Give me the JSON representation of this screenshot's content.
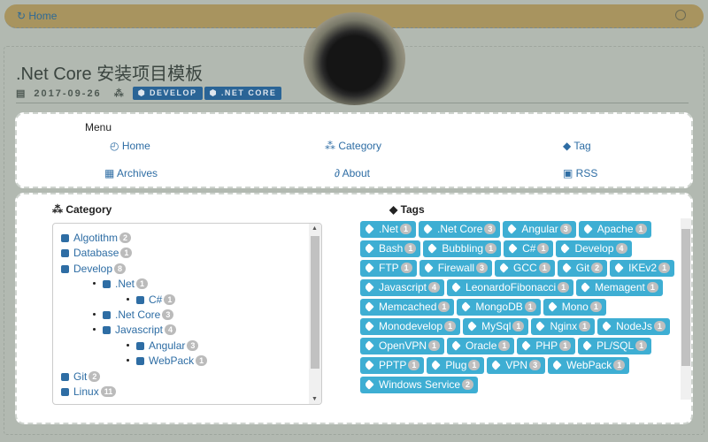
{
  "topbar": {
    "home": "Home"
  },
  "article": {
    "title": ".Net Core 安装项目模板",
    "date": "2017-09-26",
    "categories": [
      "DEVELOP",
      ".NET CORE"
    ]
  },
  "menu": {
    "title": "Menu",
    "items": [
      {
        "label": "Home",
        "icon": "clock-icon"
      },
      {
        "label": "Category",
        "icon": "cubes-icon"
      },
      {
        "label": "Tag",
        "icon": "tags-icon"
      },
      {
        "label": "Archives",
        "icon": "grid-icon"
      },
      {
        "label": "About",
        "icon": "link-icon"
      },
      {
        "label": "RSS",
        "icon": "rss-icon"
      }
    ]
  },
  "category": {
    "title": "Category",
    "tree": [
      {
        "label": "Algotithm",
        "count": "2",
        "level": 0
      },
      {
        "label": "Database",
        "count": "1",
        "level": 0
      },
      {
        "label": "Develop",
        "count": "8",
        "level": 0
      },
      {
        "label": ".Net",
        "count": "1",
        "level": 1
      },
      {
        "label": "C#",
        "count": "1",
        "level": 2
      },
      {
        "label": ".Net Core",
        "count": "3",
        "level": 1
      },
      {
        "label": "Javascript",
        "count": "4",
        "level": 1
      },
      {
        "label": "Angular",
        "count": "3",
        "level": 2
      },
      {
        "label": "WebPack",
        "count": "1",
        "level": 2
      },
      {
        "label": "Git",
        "count": "2",
        "level": 0
      },
      {
        "label": "Linux",
        "count": "11",
        "level": 0
      }
    ]
  },
  "tags": {
    "title": "Tags",
    "items": [
      {
        "label": ".Net",
        "count": "1"
      },
      {
        "label": ".Net Core",
        "count": "3"
      },
      {
        "label": "Angular",
        "count": "3"
      },
      {
        "label": "Apache",
        "count": "1"
      },
      {
        "label": "Bash",
        "count": "1"
      },
      {
        "label": "Bubbling",
        "count": "1"
      },
      {
        "label": "C#",
        "count": "1"
      },
      {
        "label": "Develop",
        "count": "4"
      },
      {
        "label": "FTP",
        "count": "1"
      },
      {
        "label": "Firewall",
        "count": "3"
      },
      {
        "label": "GCC",
        "count": "1"
      },
      {
        "label": "Git",
        "count": "2"
      },
      {
        "label": "IKEv2",
        "count": "1"
      },
      {
        "label": "Javascript",
        "count": "4"
      },
      {
        "label": "LeonardoFibonacci",
        "count": "1"
      },
      {
        "label": "Memagent",
        "count": "1"
      },
      {
        "label": "Memcached",
        "count": "1"
      },
      {
        "label": "MongoDB",
        "count": "1"
      },
      {
        "label": "Mono",
        "count": "1"
      },
      {
        "label": "Monodevelop",
        "count": "1"
      },
      {
        "label": "MySql",
        "count": "1"
      },
      {
        "label": "Nginx",
        "count": "1"
      },
      {
        "label": "NodeJs",
        "count": "1"
      },
      {
        "label": "OpenVPN",
        "count": "1"
      },
      {
        "label": "Oracle",
        "count": "1"
      },
      {
        "label": "PHP",
        "count": "1"
      },
      {
        "label": "PL/SQL",
        "count": "1"
      },
      {
        "label": "PPTP",
        "count": "1"
      },
      {
        "label": "Plug",
        "count": "1"
      },
      {
        "label": "VPN",
        "count": "3"
      },
      {
        "label": "WebPack",
        "count": "1"
      },
      {
        "label": "Windows Service",
        "count": "2"
      }
    ]
  },
  "colors": {
    "topbar": "#a8945f",
    "tag": "#3eaed3",
    "link": "#2e6da4",
    "category_label": "#2a6496"
  }
}
